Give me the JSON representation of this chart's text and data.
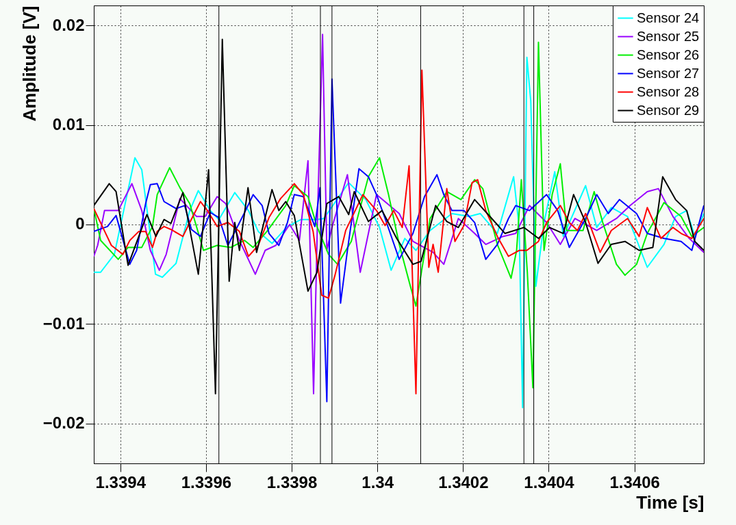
{
  "chart_data": {
    "type": "line",
    "xlabel": "Time [s]",
    "ylabel": "Amplitude [V]",
    "xlim": [
      1.339338,
      1.340762
    ],
    "ylim": [
      -0.024,
      0.022
    ],
    "xticks": [
      1.3394,
      1.3396,
      1.3398,
      1.34,
      1.3402,
      1.3404,
      1.3406
    ],
    "yticks": [
      -0.02,
      -0.01,
      0,
      0.01,
      0.02
    ],
    "grid": true,
    "legend": "top right",
    "line_style": "solid",
    "marker": "none",
    "ref_lines": [
      {
        "axis": "x",
        "value": 1.33963,
        "color": "#000000"
      },
      {
        "axis": "x",
        "value": 1.339867,
        "color": "#000000"
      },
      {
        "axis": "x",
        "value": 1.339894,
        "color": "#000000"
      },
      {
        "axis": "x",
        "value": 1.340101,
        "color": "#000000"
      },
      {
        "axis": "x",
        "value": 1.340342,
        "color": "#000000"
      },
      {
        "axis": "x",
        "value": 1.340365,
        "color": "#000000"
      }
    ],
    "series": [
      {
        "name": "Sensor 24",
        "color": "#00ffff",
        "x": [
          1.339338,
          1.339354,
          1.339386,
          1.339434,
          1.33945,
          1.339482,
          1.339498,
          1.33953,
          1.339562,
          1.339582,
          1.33961,
          1.33963,
          1.339667,
          1.339699,
          1.339722,
          1.339754,
          1.33979,
          1.339822,
          1.339859,
          1.339875,
          1.339933,
          1.339973,
          1.340005,
          1.340032,
          1.340064,
          1.34009,
          1.340123,
          1.340174,
          1.340214,
          1.34024,
          1.34028,
          1.340318,
          1.340331,
          1.340339,
          1.340349,
          1.340358,
          1.34037,
          1.340389,
          1.340414,
          1.340434,
          1.340486,
          1.340512,
          1.340546,
          1.340584,
          1.34063,
          1.340669,
          1.340696,
          1.340722,
          1.340741,
          1.340762
        ],
        "values": [
          -0.0048,
          -0.0048,
          -0.003,
          0.0067,
          0.0055,
          -0.005,
          -0.0053,
          -0.0039,
          0.0014,
          0.0034,
          0.0014,
          0.0005,
          0.0032,
          0.0014,
          -0.0007,
          -0.0019,
          -0.0002,
          0.0005,
          0.0005,
          0.0006,
          0.0042,
          0.0025,
          -0.0003,
          -0.0046,
          -0.0014,
          -0.0026,
          -0.0006,
          0.0011,
          0.0008,
          0.0011,
          -0.0009,
          0.0048,
          -0.0003,
          -0.0184,
          0.0168,
          0.0124,
          -0.0062,
          0.0002,
          0.0053,
          -0.0012,
          0.0039,
          -0.0003,
          0.0017,
          0.0008,
          -0.0043,
          -0.002,
          0.0008,
          0.0014,
          -0.0012,
          0.0011
        ]
      },
      {
        "name": "Sensor 25",
        "color": "#9900ff",
        "x": [
          1.339338,
          1.339347,
          1.339363,
          1.339395,
          1.339427,
          1.33945,
          1.33947,
          1.339491,
          1.339507,
          1.339539,
          1.339578,
          1.339598,
          1.339626,
          1.339646,
          1.339678,
          1.339715,
          1.339738,
          1.339763,
          1.339795,
          1.339818,
          1.339838,
          1.339851,
          1.339861,
          1.339872,
          1.339882,
          1.339894,
          1.33993,
          1.33996,
          1.339998,
          1.340051,
          1.340083,
          1.34013,
          1.340155,
          1.340189,
          1.340227,
          1.340253,
          1.340293,
          1.340323,
          1.340355,
          1.340395,
          1.340427,
          1.340461,
          1.340512,
          1.340558,
          1.34059,
          1.34063,
          1.340656,
          1.34069,
          1.340728,
          1.340762
        ],
        "values": [
          -0.0032,
          -0.0021,
          0.0014,
          0.0014,
          0.0041,
          0.0014,
          -0.0026,
          -0.0046,
          -0.003,
          0.0026,
          0.0008,
          0.0008,
          0.0028,
          0.0021,
          -0.0016,
          -0.005,
          -0.0026,
          -0.0021,
          0,
          -0.0016,
          0.0064,
          -0.017,
          0.0021,
          0.0191,
          -0.0026,
          -0.0003,
          0.005,
          -0.0048,
          0.003,
          0.0011,
          -0.0017,
          -0.0028,
          -0.004,
          0.0006,
          -0.0009,
          -0.002,
          -0.0012,
          -0.0009,
          0.0019,
          0.0002,
          -0.002,
          0.0006,
          -0.0006,
          0.0006,
          0.0019,
          0.0033,
          0.0036,
          0.0008,
          -0.0014,
          -0.0028
        ]
      },
      {
        "name": "Sensor 26",
        "color": "#00ee00",
        "x": [
          1.339338,
          1.339354,
          1.339395,
          1.339418,
          1.33945,
          1.339475,
          1.339486,
          1.339515,
          1.339539,
          1.339562,
          1.339594,
          1.339626,
          1.339658,
          1.33969,
          1.33971,
          1.339742,
          1.339786,
          1.339806,
          1.339838,
          1.339859,
          1.339886,
          1.339907,
          1.339939,
          1.339979,
          1.340005,
          1.340026,
          1.340051,
          1.340077,
          1.34009,
          1.340123,
          1.340162,
          1.340195,
          1.340227,
          1.340246,
          1.34028,
          1.340312,
          1.340325,
          1.340336,
          1.34035,
          1.340363,
          1.340376,
          1.340389,
          1.340408,
          1.340427,
          1.340442,
          1.34048,
          1.340506,
          1.340526,
          1.340558,
          1.340578,
          1.340605,
          1.34063,
          1.340669,
          1.340709,
          1.340734,
          1.340762
        ],
        "values": [
          0.0016,
          -0.0016,
          -0.0035,
          -0.0023,
          -0.0023,
          -0.0002,
          0.003,
          0.0057,
          0.0037,
          0.0021,
          -0.0026,
          -0.0021,
          -0.0023,
          -0.0016,
          -0.0023,
          -0.0007,
          0.0019,
          0.0039,
          0.0028,
          -0.0002,
          -0.003,
          -0.004,
          -0.0017,
          0.0048,
          0.0067,
          0.003,
          -0.002,
          -0.0062,
          -0.0082,
          0.0006,
          0.0033,
          0.0025,
          0.0045,
          0.0036,
          -0.002,
          -0.0054,
          -0.0026,
          0.0045,
          -0.0048,
          -0.0164,
          0.0183,
          -0.0026,
          0.003,
          0.0061,
          -0.0006,
          -0.0006,
          0.0033,
          0.0002,
          -0.004,
          -0.0051,
          -0.004,
          -0.0009,
          0.0022,
          0.0008,
          -0.0012,
          -0.0003
        ]
      },
      {
        "name": "Sensor 27",
        "color": "#0000ff",
        "x": [
          1.339338,
          1.33937,
          1.33939,
          1.339422,
          1.339438,
          1.339459,
          1.33947,
          1.339486,
          1.339502,
          1.33953,
          1.33955,
          1.339566,
          1.339587,
          1.33961,
          1.33963,
          1.339651,
          1.33969,
          1.33971,
          1.339731,
          1.339747,
          1.33977,
          1.33979,
          1.339806,
          1.339827,
          1.339854,
          1.339866,
          1.339882,
          1.339894,
          1.339914,
          1.33993,
          1.339957,
          1.339979,
          1.339998,
          1.340018,
          1.340051,
          1.340083,
          1.34011,
          1.340139,
          1.340155,
          1.340174,
          1.340202,
          1.340227,
          1.340253,
          1.34028,
          1.340306,
          1.340323,
          1.340355,
          1.340395,
          1.340421,
          1.340448,
          1.340486,
          1.340512,
          1.340539,
          1.340565,
          1.340605,
          1.34063,
          1.340669,
          1.340709,
          1.340734,
          1.340762
        ],
        "values": [
          -0.0007,
          -0.0002,
          0.0009,
          -0.004,
          -0.0026,
          0.0021,
          0.004,
          0.0041,
          0.0023,
          0.0016,
          0.0019,
          -0.0005,
          -0.0012,
          0.0012,
          0.0007,
          -0.0021,
          0.0012,
          0.003,
          0.0019,
          -0.0009,
          -0.0021,
          0.0002,
          0.003,
          0.0028,
          -0.0002,
          0.0037,
          -0.0178,
          0.0146,
          -0.0079,
          -0.0026,
          0.0056,
          0.0048,
          0.003,
          0.0006,
          -0.0035,
          -0.0009,
          0.0028,
          0.005,
          0.003,
          0.0014,
          0.0014,
          0.0002,
          -0.0035,
          -0.002,
          0.0006,
          0.0019,
          0.0014,
          0.003,
          0.0014,
          -0.0023,
          0.0006,
          0.003,
          0.0011,
          0.0025,
          0.0011,
          -0.0009,
          -0.0014,
          -0.0017,
          -0.0026,
          0.0019
        ]
      },
      {
        "name": "Sensor 28",
        "color": "#ff0000",
        "x": [
          1.339338,
          1.339358,
          1.339379,
          1.339406,
          1.339422,
          1.339443,
          1.339459,
          1.339475,
          1.339486,
          1.339502,
          1.339518,
          1.339546,
          1.339562,
          1.339587,
          1.339603,
          1.339626,
          1.339651,
          1.339678,
          1.339699,
          1.339722,
          1.339747,
          1.339774,
          1.339806,
          1.339827,
          1.33985,
          1.33987,
          1.339886,
          1.339901,
          1.339926,
          1.339966,
          1.339998,
          1.340018,
          1.340038,
          1.340058,
          1.340074,
          1.34009,
          1.340104,
          1.34012,
          1.34013,
          1.340142,
          1.340162,
          1.340181,
          1.340202,
          1.340221,
          1.340234,
          1.340253,
          1.34028,
          1.340306,
          1.340331,
          1.340349,
          1.340376,
          1.340395,
          1.340427,
          1.340448,
          1.340467,
          1.340486,
          1.34052,
          1.340546,
          1.340584,
          1.340611,
          1.34063,
          1.340662,
          1.34069,
          1.340709,
          1.340734,
          1.340762
        ],
        "values": [
          0.0016,
          -0.0002,
          -0.0021,
          -0.003,
          -0.0016,
          -0.0007,
          -0.0007,
          -0.0023,
          -0.0007,
          -0.0002,
          -0.0005,
          -0.0012,
          0.0002,
          0.0023,
          0.0014,
          -0.0002,
          0.0002,
          -0.0007,
          -0.0032,
          -0.0021,
          0.0007,
          0.0026,
          0.0041,
          0.003,
          -0.0007,
          -0.0071,
          -0.0074,
          -0.0051,
          -0.0006,
          0.003,
          0.0014,
          -0.0001,
          0.0014,
          -0.0003,
          0.0059,
          -0.017,
          0.0155,
          -0.0043,
          -0.002,
          -0.0048,
          0.0036,
          -0.0017,
          -0.0001,
          0.0042,
          0.0045,
          0.0014,
          -0.0012,
          -0.0032,
          -0.0026,
          -0.0026,
          -0.0017,
          0.0002,
          0.0019,
          0.0002,
          -0.0006,
          0.0011,
          -0.0028,
          -0.0006,
          0.0006,
          -0.0012,
          0.0017,
          -0.0014,
          -0.0003,
          -0.0009,
          -0.0014,
          0.0006
        ]
      },
      {
        "name": "Sensor 29",
        "color": "#000000",
        "x": [
          1.339338,
          1.339374,
          1.33939,
          1.339418,
          1.339462,
          1.339483,
          1.339502,
          1.339518,
          1.339546,
          1.339582,
          1.339606,
          1.339622,
          1.339638,
          1.339654,
          1.339667,
          1.339678,
          1.339698,
          1.339718,
          1.339754,
          1.33977,
          1.339786,
          1.339806,
          1.339838,
          1.339859,
          1.339882,
          1.33991,
          1.339933,
          1.339946,
          1.339979,
          1.340011,
          1.340045,
          1.340083,
          1.340102,
          1.340136,
          1.340162,
          1.340189,
          1.340227,
          1.340267,
          1.340298,
          1.340342,
          1.340376,
          1.340402,
          1.340434,
          1.340458,
          1.340486,
          1.340515,
          1.340546,
          1.340578,
          1.340611,
          1.340643,
          1.340666,
          1.340696,
          1.340722,
          1.340741,
          1.340762
        ],
        "values": [
          0.0019,
          0.0041,
          0.0033,
          -0.0041,
          0.001,
          -0.0012,
          0.0005,
          0.0001,
          0.0032,
          -0.005,
          0.0055,
          -0.017,
          0.0186,
          -0.0057,
          0.0002,
          -0.0026,
          0.0037,
          -0.0028,
          0.0035,
          0.0014,
          0.0023,
          0.0009,
          -0.0067,
          -0.0048,
          0.0021,
          0.0028,
          0.001,
          0.0033,
          0.0003,
          0.0014,
          -0.0014,
          -0.004,
          -0.0037,
          0.0019,
          0.0003,
          -0.0003,
          0.0025,
          0.0006,
          -0.0009,
          -0.0003,
          -0.0014,
          -0.0003,
          -0.0009,
          0.003,
          0.0002,
          -0.0039,
          -0.002,
          -0.0017,
          -0.0026,
          -0.0023,
          0.0048,
          0.0025,
          0.0014,
          -0.0017,
          -0.0026
        ]
      }
    ]
  }
}
